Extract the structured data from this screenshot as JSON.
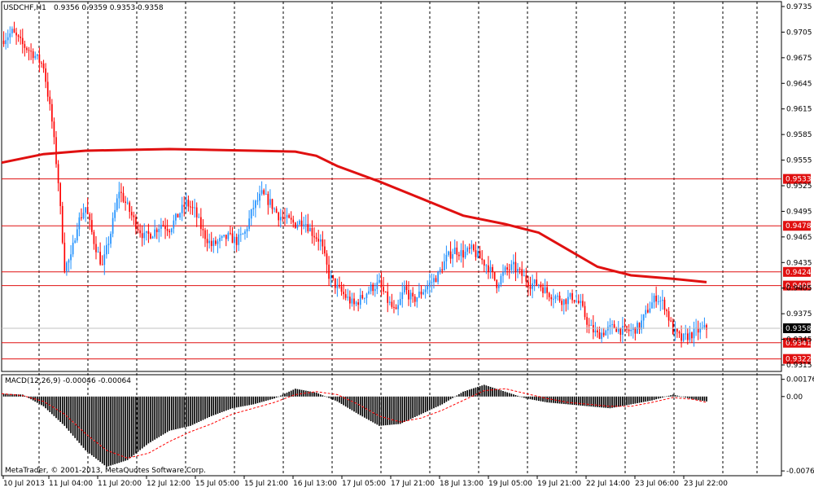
{
  "header": {
    "symbol": "USDCHF,H1",
    "ohlc": "0.9356 0.9359 0.9353 0.9358",
    "macd_label": "MACD(12,26,9) -0.00046 -0.00064",
    "copyright": "MetaTrader, © 2001-2013, MetaQuotes Software Corp."
  },
  "colors": {
    "background": "#ffffff",
    "grid": "#000000",
    "candle_up": "#1e90ff",
    "candle_down": "#ff0000",
    "ma": "#e01010",
    "level_line": "#e01010",
    "macd_hist": "#000000",
    "macd_signal": "#ff0000",
    "current_price_bg": "#000000",
    "level_tag_bg": "#e01010"
  },
  "chart_data": [
    {
      "type": "candlestick",
      "name": "price",
      "ylim": [
        0.9315,
        0.9735
      ],
      "y_ticks": [
        "0.9735",
        "0.9705",
        "0.9675",
        "0.9645",
        "0.9615",
        "0.9585",
        "0.9555",
        "0.9525",
        "0.9495",
        "0.9465",
        "0.9435",
        "0.9405",
        "0.9375",
        "0.9345",
        "0.9315"
      ],
      "x_ticks": [
        "10 Jul 2013",
        "11 Jul 04:00",
        "11 Jul 20:00",
        "12 Jul 12:00",
        "15 Jul 05:00",
        "15 Jul 21:00",
        "16 Jul 13:00",
        "17 Jul 05:00",
        "17 Jul 21:00",
        "18 Jul 13:00",
        "19 Jul 05:00",
        "19 Jul 21:00",
        "22 Jul 14:00",
        "23 Jul 06:00",
        "23 Jul 22:00"
      ],
      "levels": [
        "0.9533",
        "0.9478",
        "0.9424",
        "0.9408",
        "0.9341",
        "0.9322"
      ],
      "current_price": "0.9358",
      "close_path": [
        [
          0,
          0.9695
        ],
        [
          5,
          0.9705
        ],
        [
          10,
          0.969
        ],
        [
          15,
          0.968
        ],
        [
          20,
          0.9665
        ],
        [
          24,
          0.96
        ],
        [
          27,
          0.953
        ],
        [
          30,
          0.943
        ],
        [
          33,
          0.944
        ],
        [
          36,
          0.948
        ],
        [
          40,
          0.95
        ],
        [
          44,
          0.946
        ],
        [
          48,
          0.943
        ],
        [
          52,
          0.947
        ],
        [
          56,
          0.952
        ],
        [
          60,
          0.95
        ],
        [
          64,
          0.948
        ],
        [
          68,
          0.9465
        ],
        [
          72,
          0.947
        ],
        [
          76,
          0.948
        ],
        [
          80,
          0.9475
        ],
        [
          84,
          0.949
        ],
        [
          88,
          0.9505
        ],
        [
          92,
          0.9495
        ],
        [
          96,
          0.947
        ],
        [
          100,
          0.9455
        ],
        [
          104,
          0.946
        ],
        [
          108,
          0.9465
        ],
        [
          112,
          0.946
        ],
        [
          116,
          0.947
        ],
        [
          120,
          0.95
        ],
        [
          124,
          0.9515
        ],
        [
          128,
          0.9505
        ],
        [
          132,
          0.949
        ],
        [
          136,
          0.9485
        ],
        [
          140,
          0.948
        ],
        [
          144,
          0.9485
        ],
        [
          148,
          0.947
        ],
        [
          152,
          0.946
        ],
        [
          156,
          0.942
        ],
        [
          160,
          0.9405
        ],
        [
          164,
          0.9395
        ],
        [
          168,
          0.9385
        ],
        [
          172,
          0.9395
        ],
        [
          176,
          0.9405
        ],
        [
          180,
          0.941
        ],
        [
          184,
          0.939
        ],
        [
          188,
          0.9375
        ],
        [
          192,
          0.9405
        ],
        [
          196,
          0.939
        ],
        [
          200,
          0.94
        ],
        [
          204,
          0.941
        ],
        [
          208,
          0.942
        ],
        [
          212,
          0.944
        ],
        [
          216,
          0.945
        ],
        [
          220,
          0.9445
        ],
        [
          224,
          0.945
        ],
        [
          228,
          0.944
        ],
        [
          232,
          0.943
        ],
        [
          236,
          0.941
        ],
        [
          240,
          0.9425
        ],
        [
          244,
          0.943
        ],
        [
          248,
          0.942
        ],
        [
          252,
          0.941
        ],
        [
          256,
          0.941
        ],
        [
          260,
          0.94
        ],
        [
          264,
          0.9395
        ],
        [
          268,
          0.939
        ],
        [
          272,
          0.9395
        ],
        [
          276,
          0.9385
        ],
        [
          280,
          0.936
        ],
        [
          284,
          0.935
        ],
        [
          288,
          0.9355
        ],
        [
          292,
          0.936
        ],
        [
          296,
          0.9355
        ],
        [
          300,
          0.9355
        ],
        [
          304,
          0.936
        ],
        [
          308,
          0.938
        ],
        [
          312,
          0.9395
        ],
        [
          316,
          0.9385
        ],
        [
          320,
          0.9355
        ],
        [
          324,
          0.9345
        ],
        [
          328,
          0.935
        ],
        [
          332,
          0.9355
        ],
        [
          336,
          0.9358
        ]
      ],
      "ma_path": [
        [
          0,
          0.9552
        ],
        [
          20,
          0.9562
        ],
        [
          40,
          0.9566
        ],
        [
          60,
          0.9567
        ],
        [
          80,
          0.9568
        ],
        [
          100,
          0.9567
        ],
        [
          120,
          0.9566
        ],
        [
          140,
          0.9565
        ],
        [
          150,
          0.956
        ],
        [
          160,
          0.9548
        ],
        [
          180,
          0.953
        ],
        [
          200,
          0.951
        ],
        [
          220,
          0.949
        ],
        [
          240,
          0.948
        ],
        [
          256,
          0.947
        ],
        [
          270,
          0.945
        ],
        [
          284,
          0.943
        ],
        [
          300,
          0.942
        ],
        [
          320,
          0.9416
        ],
        [
          336,
          0.9412
        ]
      ]
    },
    {
      "type": "bar",
      "name": "MACD(12,26,9)",
      "ylim": [
        -0.0076,
        0.0019
      ],
      "y_ticks": [
        "0.00176",
        "0.00",
        "-0.00761"
      ],
      "histogram_path": [
        [
          0,
          0.0003
        ],
        [
          10,
          0.0002
        ],
        [
          20,
          -0.001
        ],
        [
          30,
          -0.003
        ],
        [
          40,
          -0.0055
        ],
        [
          50,
          -0.0072
        ],
        [
          60,
          -0.0065
        ],
        [
          70,
          -0.0048
        ],
        [
          80,
          -0.0035
        ],
        [
          90,
          -0.003
        ],
        [
          100,
          -0.002
        ],
        [
          110,
          -0.0012
        ],
        [
          120,
          -0.0008
        ],
        [
          130,
          -0.0002
        ],
        [
          140,
          0.0008
        ],
        [
          150,
          0.0004
        ],
        [
          160,
          -0.0005
        ],
        [
          170,
          -0.0018
        ],
        [
          180,
          -0.003
        ],
        [
          190,
          -0.0028
        ],
        [
          200,
          -0.0018
        ],
        [
          210,
          -0.0008
        ],
        [
          220,
          0.0005
        ],
        [
          230,
          0.0012
        ],
        [
          240,
          0.0005
        ],
        [
          250,
          -0.0002
        ],
        [
          260,
          -0.0006
        ],
        [
          270,
          -0.0008
        ],
        [
          280,
          -0.001
        ],
        [
          290,
          -0.0012
        ],
        [
          300,
          -0.0008
        ],
        [
          310,
          -0.0004
        ],
        [
          320,
          0.0002
        ],
        [
          330,
          -0.0003
        ],
        [
          336,
          -0.0005
        ]
      ],
      "signal_path": [
        [
          0,
          0.0003
        ],
        [
          10,
          0.0001
        ],
        [
          20,
          -0.0005
        ],
        [
          30,
          -0.0018
        ],
        [
          40,
          -0.0038
        ],
        [
          50,
          -0.0055
        ],
        [
          60,
          -0.0063
        ],
        [
          70,
          -0.0058
        ],
        [
          80,
          -0.0046
        ],
        [
          90,
          -0.0036
        ],
        [
          100,
          -0.0028
        ],
        [
          110,
          -0.0018
        ],
        [
          120,
          -0.0012
        ],
        [
          130,
          -0.0006
        ],
        [
          140,
          0.0002
        ],
        [
          150,
          0.0005
        ],
        [
          160,
          0.0002
        ],
        [
          170,
          -0.0008
        ],
        [
          180,
          -0.002
        ],
        [
          190,
          -0.0026
        ],
        [
          200,
          -0.0022
        ],
        [
          210,
          -0.0014
        ],
        [
          220,
          -0.0004
        ],
        [
          230,
          0.0006
        ],
        [
          240,
          0.0008
        ],
        [
          250,
          0.0003
        ],
        [
          260,
          -0.0002
        ],
        [
          270,
          -0.0006
        ],
        [
          280,
          -0.0008
        ],
        [
          290,
          -0.001
        ],
        [
          300,
          -0.001
        ],
        [
          310,
          -0.0006
        ],
        [
          320,
          -0.0001
        ],
        [
          330,
          -0.0003
        ],
        [
          336,
          -0.0006
        ]
      ]
    }
  ]
}
